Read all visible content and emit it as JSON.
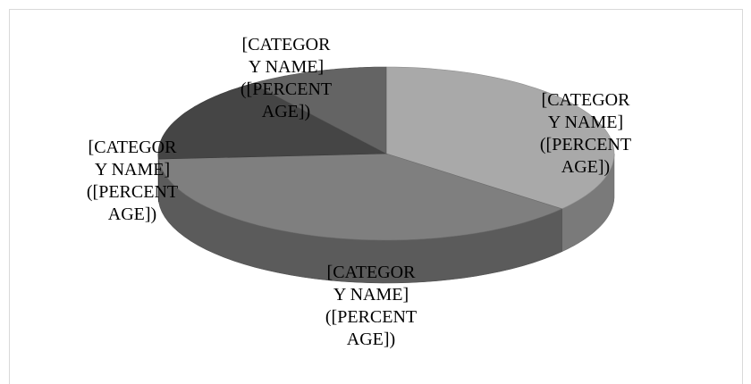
{
  "chart_data": {
    "type": "pie3d",
    "labels": [
      "[CATEGORY NAME] ([PERCENTAGE])",
      "[CATEGORY NAME] ([PERCENTAGE])",
      "[CATEGORY NAME] ([PERCENTAGE])",
      "[CATEGORY NAME] ([PERCENTAGE])"
    ],
    "values": [
      36,
      38,
      16,
      10
    ],
    "colors": [
      "#a9a9a9",
      "#7f7f7f",
      "#454545",
      "#646464"
    ]
  }
}
